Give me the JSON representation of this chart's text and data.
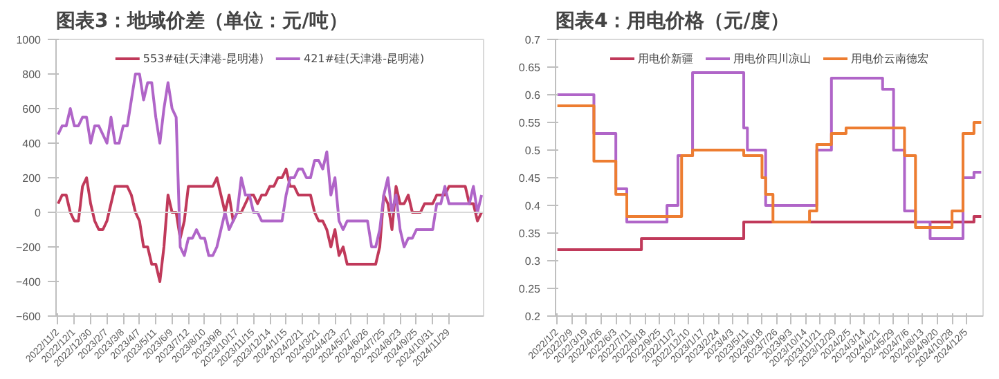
{
  "chart_data": [
    {
      "type": "line",
      "title": "图表3：地域价差（单位：元/吨）",
      "categories": [
        "2022/11/2",
        null,
        null,
        null,
        "2022/12/1",
        null,
        null,
        null,
        "2022/12/30",
        null,
        null,
        null,
        "2023/2/7",
        null,
        null,
        null,
        "2023/3/8",
        null,
        null,
        null,
        "2023/4/7",
        null,
        null,
        null,
        "2023/5/11",
        null,
        null,
        null,
        "2023/6/9",
        null,
        null,
        null,
        "2023/7/12",
        null,
        null,
        null,
        "2023/8/10",
        null,
        null,
        null,
        "2023/9/8",
        null,
        null,
        null,
        "2023/10/17",
        null,
        null,
        null,
        "2023/11/15",
        null,
        null,
        null,
        "2023/12/14",
        null,
        null,
        null,
        "2024/1/15",
        null,
        null,
        null,
        "2024/2/21",
        null,
        null,
        null,
        "2024/3/21",
        null,
        null,
        null,
        "2024/4/23",
        null,
        null,
        null,
        "2024/5/27",
        null,
        null,
        null,
        "2024/6/26",
        null,
        null,
        null,
        "2024/7/25",
        null,
        null,
        null,
        "2024/8/23",
        null,
        null,
        null,
        "2024/9/25",
        null,
        null,
        null,
        "2024/10/31",
        null,
        null,
        null,
        "2024/11/29",
        null,
        null,
        null,
        null,
        null,
        null,
        null,
        null
      ],
      "series": [
        {
          "name": "553#硅(天津港-昆明港)",
          "color": "#c0395a",
          "values": [
            50,
            100,
            100,
            0,
            -50,
            -50,
            150,
            200,
            50,
            -50,
            -100,
            -100,
            -50,
            50,
            150,
            150,
            150,
            150,
            100,
            0,
            -50,
            -200,
            -200,
            -300,
            -300,
            -400,
            -200,
            100,
            0,
            0,
            -150,
            -50,
            150,
            150,
            150,
            150,
            150,
            150,
            150,
            200,
            100,
            0,
            100,
            -50,
            0,
            0,
            50,
            100,
            100,
            50,
            100,
            100,
            150,
            150,
            200,
            200,
            250,
            150,
            150,
            100,
            100,
            100,
            100,
            0,
            -50,
            -50,
            -100,
            -200,
            -100,
            -250,
            -200,
            -300,
            -300,
            -300,
            -300,
            -300,
            -300,
            -300,
            -300,
            -200,
            100,
            50,
            -100,
            150,
            50,
            50,
            100,
            0,
            0,
            0,
            50,
            50,
            50,
            100,
            100,
            100,
            150,
            150,
            150,
            150,
            150,
            50,
            50,
            -50,
            0
          ]
        },
        {
          "name": "421#硅(天津港-昆明港)",
          "color": "#b065c8",
          "values": [
            450,
            500,
            500,
            600,
            500,
            500,
            550,
            550,
            400,
            500,
            500,
            450,
            400,
            550,
            400,
            400,
            500,
            500,
            650,
            800,
            800,
            650,
            750,
            750,
            550,
            400,
            600,
            750,
            600,
            550,
            -200,
            -250,
            -150,
            -150,
            -100,
            -150,
            -150,
            -250,
            -250,
            -200,
            -100,
            0,
            -100,
            -50,
            0,
            200,
            100,
            100,
            0,
            0,
            -50,
            -50,
            -50,
            -50,
            -50,
            -50,
            100,
            200,
            200,
            250,
            250,
            200,
            200,
            300,
            300,
            250,
            350,
            100,
            200,
            -50,
            -100,
            -50,
            -50,
            -50,
            -50,
            -50,
            -50,
            -200,
            -200,
            -100,
            100,
            200,
            0,
            100,
            -100,
            -200,
            -150,
            -150,
            -100,
            -100,
            -100,
            -100,
            -100,
            50,
            50,
            150,
            50,
            50,
            50,
            50,
            50,
            50,
            150,
            0,
            100
          ]
        }
      ],
      "ylim": [
        -600,
        1000
      ],
      "yticks": [
        -600,
        -400,
        -200,
        0,
        200,
        400,
        600,
        800,
        1000
      ],
      "ref_lines": [
        {
          "axis": "y",
          "value": 0,
          "color": "#d9d9d9"
        }
      ],
      "grid": false,
      "legend": "top"
    },
    {
      "type": "step",
      "title": "图表4：用电价格（元/度）",
      "categories": [
        "2022/1/2",
        null,
        null,
        null,
        "2022/2/9",
        null,
        null,
        null,
        "2022/3/19",
        null,
        null,
        null,
        "2022/4/26",
        null,
        null,
        null,
        "2022/6/3",
        null,
        null,
        null,
        "2022/7/11",
        null,
        null,
        null,
        "2022/8/18",
        null,
        null,
        null,
        "2022/9/25",
        null,
        null,
        null,
        "2022/11/2",
        null,
        null,
        null,
        "2022/12/10",
        null,
        null,
        null,
        "2023/1/17",
        null,
        null,
        null,
        "2023/2/24",
        null,
        null,
        null,
        "2023/4/3",
        null,
        null,
        null,
        "2023/5/11",
        null,
        null,
        null,
        "2023/6/18",
        null,
        null,
        null,
        "2023/7/26",
        null,
        null,
        null,
        "2023/9/3",
        null,
        null,
        null,
        "2023/10/14",
        null,
        null,
        null,
        "2023/11/21",
        null,
        null,
        null,
        "2023/12/29",
        null,
        null,
        null,
        "2024/2/5",
        null,
        null,
        null,
        "2024/3/14",
        null,
        null,
        null,
        "2024/4/21",
        null,
        null,
        null,
        "2024/5/29",
        null,
        null,
        null,
        "2024/7/6",
        null,
        null,
        null,
        "2024/8/13",
        null,
        null,
        null,
        "2024/9/20",
        null,
        null,
        null,
        "2024/10/28",
        null,
        null,
        null,
        "2024/12/5",
        null,
        null,
        null,
        null
      ],
      "series": [
        {
          "name": "用电价新疆",
          "color": "#c0395a",
          "values": [
            0.32,
            0.32,
            0.32,
            0.32,
            0.32,
            0.32,
            0.32,
            0.32,
            0.32,
            0.32,
            0.32,
            0.32,
            0.32,
            0.32,
            0.32,
            0.32,
            0.32,
            0.32,
            0.32,
            0.32,
            0.32,
            0.32,
            0.32,
            0.34,
            0.34,
            0.34,
            0.34,
            0.34,
            0.34,
            0.34,
            0.34,
            0.34,
            0.34,
            0.34,
            0.34,
            0.34,
            0.34,
            0.34,
            0.34,
            0.34,
            0.34,
            0.34,
            0.34,
            0.34,
            0.34,
            0.34,
            0.34,
            0.34,
            0.34,
            0.34,
            0.34,
            0.37,
            0.37,
            0.37,
            0.37,
            0.37,
            0.37,
            0.37,
            0.37,
            0.37,
            0.37,
            0.37,
            0.37,
            0.37,
            0.37,
            0.37,
            0.37,
            0.37,
            0.37,
            0.37,
            0.37,
            0.37,
            0.37,
            0.37,
            0.37,
            0.37,
            0.37,
            0.37,
            0.37,
            0.37,
            0.37,
            0.37,
            0.37,
            0.37,
            0.37,
            0.37,
            0.37,
            0.37,
            0.37,
            0.37,
            0.37,
            0.37,
            0.37,
            0.37,
            0.37,
            0.37,
            0.37,
            0.37,
            0.37,
            0.37,
            0.37,
            0.37,
            0.37,
            0.37,
            0.37,
            0.37,
            0.37,
            0.37,
            0.37,
            0.37,
            0.37,
            0.37,
            0.37,
            0.37,
            0.38,
            0.38,
            0.38
          ]
        },
        {
          "name": "用电价四川凉山",
          "color": "#b065c8",
          "values": [
            0.6,
            0.6,
            0.6,
            0.6,
            0.6,
            0.6,
            0.6,
            0.6,
            0.6,
            0.6,
            0.53,
            0.53,
            0.53,
            0.53,
            0.53,
            0.53,
            0.43,
            0.43,
            0.43,
            0.37,
            0.37,
            0.37,
            0.37,
            0.37,
            0.37,
            0.37,
            0.37,
            0.37,
            0.37,
            0.37,
            0.4,
            0.4,
            0.4,
            0.49,
            0.49,
            0.49,
            0.49,
            0.64,
            0.64,
            0.64,
            0.64,
            0.64,
            0.64,
            0.64,
            0.64,
            0.64,
            0.64,
            0.64,
            0.64,
            0.64,
            0.64,
            0.54,
            0.5,
            0.5,
            0.5,
            0.5,
            0.5,
            0.4,
            0.4,
            0.4,
            0.4,
            0.4,
            0.4,
            0.4,
            0.4,
            0.4,
            0.4,
            0.4,
            0.4,
            0.4,
            0.4,
            0.5,
            0.5,
            0.5,
            0.5,
            0.63,
            0.63,
            0.63,
            0.63,
            0.63,
            0.63,
            0.63,
            0.63,
            0.63,
            0.63,
            0.63,
            0.63,
            0.63,
            0.63,
            0.61,
            0.61,
            0.61,
            0.5,
            0.5,
            0.5,
            0.39,
            0.39,
            0.39,
            0.37,
            0.37,
            0.37,
            0.37,
            0.34,
            0.34,
            0.34,
            0.34,
            0.34,
            0.34,
            0.34,
            0.34,
            0.34,
            0.45,
            0.45,
            0.45,
            0.46,
            0.46,
            0.46
          ]
        },
        {
          "name": "用电价云南德宏",
          "color": "#ed7d31",
          "values": [
            0.58,
            0.58,
            0.58,
            0.58,
            0.58,
            0.58,
            0.58,
            0.58,
            0.58,
            0.58,
            0.48,
            0.48,
            0.48,
            0.48,
            0.48,
            0.48,
            0.42,
            0.42,
            0.42,
            0.38,
            0.38,
            0.38,
            0.38,
            0.38,
            0.38,
            0.38,
            0.38,
            0.38,
            0.38,
            0.38,
            0.38,
            0.38,
            0.38,
            0.38,
            0.49,
            0.49,
            0.49,
            0.5,
            0.5,
            0.5,
            0.5,
            0.5,
            0.5,
            0.5,
            0.5,
            0.5,
            0.5,
            0.5,
            0.5,
            0.5,
            0.5,
            0.49,
            0.49,
            0.49,
            0.49,
            0.49,
            0.45,
            0.42,
            0.42,
            0.37,
            0.37,
            0.37,
            0.37,
            0.37,
            0.37,
            0.37,
            0.37,
            0.37,
            0.37,
            0.39,
            0.39,
            0.51,
            0.51,
            0.51,
            0.51,
            0.53,
            0.53,
            0.53,
            0.53,
            0.54,
            0.54,
            0.54,
            0.54,
            0.54,
            0.54,
            0.54,
            0.54,
            0.54,
            0.54,
            0.54,
            0.54,
            0.54,
            0.54,
            0.54,
            0.54,
            0.49,
            0.49,
            0.49,
            0.36,
            0.36,
            0.36,
            0.36,
            0.36,
            0.36,
            0.36,
            0.36,
            0.36,
            0.36,
            0.39,
            0.39,
            0.39,
            0.53,
            0.53,
            0.53,
            0.55,
            0.55,
            0.55
          ]
        }
      ],
      "ylim": [
        0.2,
        0.7
      ],
      "yticks": [
        0.2,
        0.25,
        0.3,
        0.35,
        0.4,
        0.45,
        0.5,
        0.55,
        0.6,
        0.65,
        0.7
      ],
      "grid": false,
      "legend": "top"
    }
  ]
}
